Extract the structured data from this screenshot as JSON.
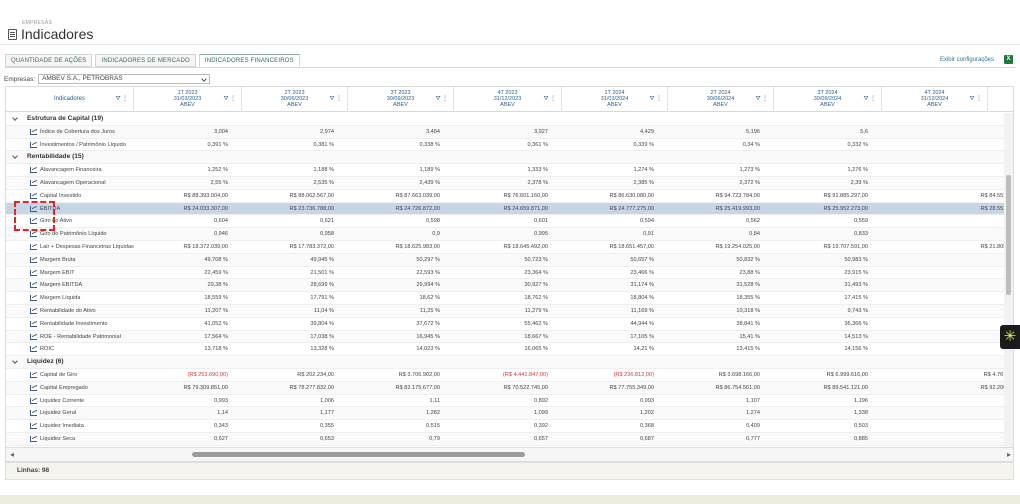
{
  "header": {
    "breadcrumb": "EMPRESAS",
    "title": "Indicadores"
  },
  "tabs": [
    {
      "label": "QUANTIDADE DE AÇÕES"
    },
    {
      "label": "INDICADORES DE MERCADO"
    },
    {
      "label": "INDICADORES FINANCEIROS",
      "active": true
    }
  ],
  "toolbar": {
    "config_link": "Exibir configurações",
    "export_icon": "excel-icon"
  },
  "filter": {
    "label": "Empresas:",
    "value": "AMBEV S.A., PETROBRAS"
  },
  "columns": {
    "first": "Indicadores",
    "periods": [
      {
        "period": "1T 2023",
        "date": "31/03/2023",
        "company": "ABEV"
      },
      {
        "period": "2T 2023",
        "date": "30/06/2023",
        "company": "ABEV"
      },
      {
        "period": "3T 2023",
        "date": "30/09/2023",
        "company": "ABEV"
      },
      {
        "period": "4T 2023",
        "date": "31/12/2023",
        "company": "ABEV"
      },
      {
        "period": "1T 2024",
        "date": "31/03/2024",
        "company": "ABEV"
      },
      {
        "period": "2T 2024",
        "date": "30/06/2024",
        "company": "ABEV"
      },
      {
        "period": "3T 2024",
        "date": "30/09/2024",
        "company": "ABEV"
      },
      {
        "period": "4T 2024",
        "date": "31/12/2024",
        "company": "ABEV"
      }
    ]
  },
  "rows": [
    {
      "type": "group",
      "name": "Estrutura de Capital (19)"
    },
    {
      "type": "item",
      "name": "Índice de Cobertura dos Juros",
      "values": [
        "3,004",
        "2,974",
        "3,484",
        "3,927",
        "4,429",
        "5,196",
        "5,6",
        ""
      ]
    },
    {
      "type": "item",
      "name": "Investimentos / Patrimônio Líquido",
      "values": [
        "0,391 %",
        "0,381 %",
        "0,338 %",
        "0,361 %",
        "0,339 %",
        "0,34 %",
        "0,332 %",
        ""
      ]
    },
    {
      "type": "group",
      "name": "Rentabilidade (15)"
    },
    {
      "type": "item",
      "name": "Alavancagem Financeira",
      "values": [
        "1,252 %",
        "1,188 %",
        "1,189 %",
        "1,333 %",
        "1,274 %",
        "1,273 %",
        "1,276 %",
        ""
      ]
    },
    {
      "type": "item",
      "name": "Alavancagem Operacional",
      "values": [
        "2,55 %",
        "2,535 %",
        "2,439 %",
        "2,378 %",
        "2,385 %",
        "2,372 %",
        "2,39 %",
        ""
      ]
    },
    {
      "type": "item",
      "name": "Capital Investido",
      "values": [
        "R$ 88.393.004,00",
        "R$ 88.062.567,00",
        "R$ 87.663.039,00",
        "R$ 76.601.160,00",
        "R$ 86.630.080,00",
        "R$ 94.723.784,00",
        "R$ 91.885.297,00",
        "R$ 84.557.9"
      ]
    },
    {
      "type": "item",
      "name": "EBITDA",
      "selected": true,
      "values": [
        "R$ 24.033.307,00",
        "R$ 23.736.788,00",
        "R$ 24.726.872,00",
        "R$ 24.659.871,00",
        "R$ 24.777.275,00",
        "R$ 25.419.993,00",
        "R$ 25.952.273,00",
        "R$ 28.551.1"
      ]
    },
    {
      "type": "item",
      "name": "Giro do Ativo",
      "values": [
        "0,604",
        "0,621",
        "0,598",
        "0,601",
        "0,594",
        "0,562",
        "0,559",
        ""
      ]
    },
    {
      "type": "item",
      "name": "Giro do Patrimônio Líquido",
      "values": [
        "0,946",
        "0,958",
        "0,9",
        "0,995",
        "0,91",
        "0,84",
        "0,833",
        ""
      ]
    },
    {
      "type": "item",
      "name": "Lair + Despesas Financeiras Líquidas",
      "values": [
        "R$ 18.372.039,00",
        "R$ 17.783.372,00",
        "R$ 18.625.983,00",
        "R$ 18.645.492,00",
        "R$ 18.651.457,00",
        "R$ 19.254.025,00",
        "R$ 19.707.591,00",
        "R$ 21.805.5"
      ]
    },
    {
      "type": "item",
      "name": "Margem Bruta",
      "values": [
        "49,708 %",
        "49,945 %",
        "50,297 %",
        "50,723 %",
        "50,657 %",
        "50,832 %",
        "50,983 %",
        ""
      ]
    },
    {
      "type": "item",
      "name": "Margem EBIT",
      "values": [
        "22,459 %",
        "21,501 %",
        "22,593 %",
        "23,364 %",
        "23,466 %",
        "23,88 %",
        "23,915 %",
        ""
      ]
    },
    {
      "type": "item",
      "name": "Margem EBITDA",
      "values": [
        "29,38 %",
        "28,699 %",
        "29,994 %",
        "30,927 %",
        "31,174 %",
        "31,528 %",
        "31,493 %",
        ""
      ]
    },
    {
      "type": "item",
      "name": "Margem Líquida",
      "values": [
        "18,559 %",
        "17,791 %",
        "18,62 %",
        "18,762 %",
        "18,804 %",
        "18,355 %",
        "17,415 %",
        ""
      ]
    },
    {
      "type": "item",
      "name": "Rentabilidade do Ativo",
      "values": [
        "11,207 %",
        "11,04 %",
        "11,25 %",
        "11,279 %",
        "11,169 %",
        "10,318 %",
        "9,743 %",
        ""
      ]
    },
    {
      "type": "item",
      "name": "Rentabilidade Investimento",
      "values": [
        "41,052 %",
        "39,804 %",
        "37,672 %",
        "55,462 %",
        "44,944 %",
        "38,841 %",
        "36,366 %",
        ""
      ]
    },
    {
      "type": "item",
      "name": "ROE - Rentabilidade Patrimonial",
      "values": [
        "17,564 %",
        "17,038 %",
        "16,945 %",
        "18,667 %",
        "17,105 %",
        "15,41 %",
        "14,513 %",
        ""
      ]
    },
    {
      "type": "item",
      "name": "ROIC",
      "values": [
        "13,718 %",
        "13,328 %",
        "14,023 %",
        "16,065 %",
        "14,21 %",
        "13,415 %",
        "14,156 %",
        ""
      ]
    },
    {
      "type": "group",
      "name": "Liquidez (6)"
    },
    {
      "type": "item",
      "name": "Capital de Giro",
      "values": [
        "(R$ 253.690,00)",
        "R$ 202.234,00",
        "R$ 3.706.902,00",
        "(R$ 4.441.847,00)",
        "(R$ 236.812,00)",
        "R$ 3.698.166,00",
        "R$ 6.999.616,00",
        "R$ 4.767.0"
      ],
      "neg": [
        true,
        false,
        false,
        true,
        true,
        false,
        false,
        false
      ]
    },
    {
      "type": "item",
      "name": "Capital Empregado",
      "values": [
        "R$ 79.309.851,00",
        "R$ 78.277.832,00",
        "R$ 82.175.677,00",
        "R$ 70.522.745,00",
        "R$ 77.755.349,00",
        "R$ 86.754.561,00",
        "R$ 89.541.121,00",
        "R$ 92.206.0"
      ]
    },
    {
      "type": "item",
      "name": "Liquidez Corrente",
      "values": [
        "0,993",
        "1,006",
        "1,11",
        "0,892",
        "0,993",
        "1,107",
        "1,196",
        ""
      ]
    },
    {
      "type": "item",
      "name": "Liquidez Geral",
      "values": [
        "1,14",
        "1,177",
        "1,282",
        "1,099",
        "1,202",
        "1,274",
        "1,338",
        ""
      ]
    },
    {
      "type": "item",
      "name": "Liquidez Imediata",
      "values": [
        "0,343",
        "0,355",
        "0,515",
        "0,392",
        "0,368",
        "0,409",
        "0,503",
        ""
      ]
    },
    {
      "type": "item",
      "name": "Liquidez Seca",
      "values": [
        "0,627",
        "0,653",
        "0,79",
        "0,657",
        "0,687",
        "0,777",
        "0,885",
        ""
      ]
    }
  ],
  "footer": {
    "rows_label": "Linhas: 98"
  },
  "colors": {
    "accent": "#2a5d96",
    "negative": "#d23a3a",
    "selected_row": "#c7d6e6",
    "highlight": "#e0262a"
  }
}
